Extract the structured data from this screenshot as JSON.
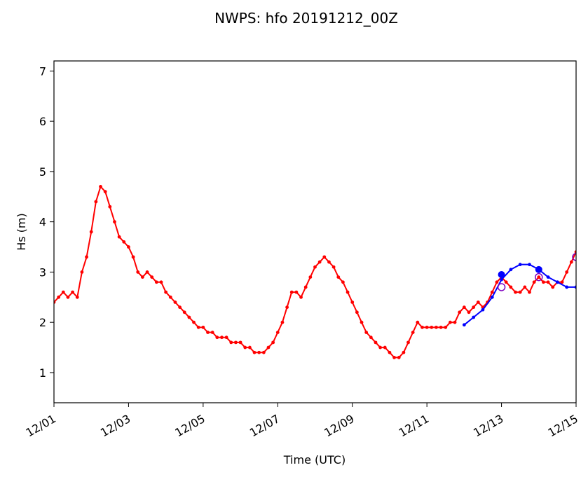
{
  "chart_data": {
    "type": "line",
    "title": "NWPS: hfo 20191212_00Z",
    "xlabel": "Time (UTC)",
    "ylabel": "Hs (m)",
    "xlim": [
      "2019-12-01",
      "2019-12-15"
    ],
    "ylim": [
      0.4,
      7.2
    ],
    "x_ticks": [
      "12/01",
      "12/03",
      "12/05",
      "12/07",
      "12/09",
      "12/11",
      "12/13",
      "12/15"
    ],
    "y_ticks": [
      "1",
      "2",
      "3",
      "4",
      "5",
      "6",
      "7"
    ],
    "grid": false,
    "legend": false,
    "series": [
      {
        "color": "#ff0000",
        "marker": "dot",
        "points": [
          [
            "2019-12-01 00:00",
            2.4
          ],
          [
            "2019-12-01 03:00",
            2.5
          ],
          [
            "2019-12-01 06:00",
            2.6
          ],
          [
            "2019-12-01 09:00",
            2.5
          ],
          [
            "2019-12-01 12:00",
            2.6
          ],
          [
            "2019-12-01 15:00",
            2.5
          ],
          [
            "2019-12-01 18:00",
            3.0
          ],
          [
            "2019-12-01 21:00",
            3.3
          ],
          [
            "2019-12-02 00:00",
            3.8
          ],
          [
            "2019-12-02 03:00",
            4.4
          ],
          [
            "2019-12-02 06:00",
            4.7
          ],
          [
            "2019-12-02 09:00",
            4.6
          ],
          [
            "2019-12-02 12:00",
            4.3
          ],
          [
            "2019-12-02 15:00",
            4.0
          ],
          [
            "2019-12-02 18:00",
            3.7
          ],
          [
            "2019-12-02 21:00",
            3.6
          ],
          [
            "2019-12-03 00:00",
            3.5
          ],
          [
            "2019-12-03 03:00",
            3.3
          ],
          [
            "2019-12-03 06:00",
            3.0
          ],
          [
            "2019-12-03 09:00",
            2.9
          ],
          [
            "2019-12-03 12:00",
            3.0
          ],
          [
            "2019-12-03 15:00",
            2.9
          ],
          [
            "2019-12-03 18:00",
            2.8
          ],
          [
            "2019-12-03 21:00",
            2.8
          ],
          [
            "2019-12-04 00:00",
            2.6
          ],
          [
            "2019-12-04 03:00",
            2.5
          ],
          [
            "2019-12-04 06:00",
            2.4
          ],
          [
            "2019-12-04 09:00",
            2.3
          ],
          [
            "2019-12-04 12:00",
            2.2
          ],
          [
            "2019-12-04 15:00",
            2.1
          ],
          [
            "2019-12-04 18:00",
            2.0
          ],
          [
            "2019-12-04 21:00",
            1.9
          ],
          [
            "2019-12-05 00:00",
            1.9
          ],
          [
            "2019-12-05 03:00",
            1.8
          ],
          [
            "2019-12-05 06:00",
            1.8
          ],
          [
            "2019-12-05 09:00",
            1.7
          ],
          [
            "2019-12-05 12:00",
            1.7
          ],
          [
            "2019-12-05 15:00",
            1.7
          ],
          [
            "2019-12-05 18:00",
            1.6
          ],
          [
            "2019-12-05 21:00",
            1.6
          ],
          [
            "2019-12-06 00:00",
            1.6
          ],
          [
            "2019-12-06 03:00",
            1.5
          ],
          [
            "2019-12-06 06:00",
            1.5
          ],
          [
            "2019-12-06 09:00",
            1.4
          ],
          [
            "2019-12-06 12:00",
            1.4
          ],
          [
            "2019-12-06 15:00",
            1.4
          ],
          [
            "2019-12-06 18:00",
            1.5
          ],
          [
            "2019-12-06 21:00",
            1.6
          ],
          [
            "2019-12-07 00:00",
            1.8
          ],
          [
            "2019-12-07 03:00",
            2.0
          ],
          [
            "2019-12-07 06:00",
            2.3
          ],
          [
            "2019-12-07 09:00",
            2.6
          ],
          [
            "2019-12-07 12:00",
            2.6
          ],
          [
            "2019-12-07 15:00",
            2.5
          ],
          [
            "2019-12-07 18:00",
            2.7
          ],
          [
            "2019-12-07 21:00",
            2.9
          ],
          [
            "2019-12-08 00:00",
            3.1
          ],
          [
            "2019-12-08 03:00",
            3.2
          ],
          [
            "2019-12-08 06:00",
            3.3
          ],
          [
            "2019-12-08 09:00",
            3.2
          ],
          [
            "2019-12-08 12:00",
            3.1
          ],
          [
            "2019-12-08 15:00",
            2.9
          ],
          [
            "2019-12-08 18:00",
            2.8
          ],
          [
            "2019-12-08 21:00",
            2.6
          ],
          [
            "2019-12-09 00:00",
            2.4
          ],
          [
            "2019-12-09 03:00",
            2.2
          ],
          [
            "2019-12-09 06:00",
            2.0
          ],
          [
            "2019-12-09 09:00",
            1.8
          ],
          [
            "2019-12-09 12:00",
            1.7
          ],
          [
            "2019-12-09 15:00",
            1.6
          ],
          [
            "2019-12-09 18:00",
            1.5
          ],
          [
            "2019-12-09 21:00",
            1.5
          ],
          [
            "2019-12-10 00:00",
            1.4
          ],
          [
            "2019-12-10 03:00",
            1.3
          ],
          [
            "2019-12-10 06:00",
            1.3
          ],
          [
            "2019-12-10 09:00",
            1.4
          ],
          [
            "2019-12-10 12:00",
            1.6
          ],
          [
            "2019-12-10 15:00",
            1.8
          ],
          [
            "2019-12-10 18:00",
            2.0
          ],
          [
            "2019-12-10 21:00",
            1.9
          ],
          [
            "2019-12-11 00:00",
            1.9
          ],
          [
            "2019-12-11 03:00",
            1.9
          ],
          [
            "2019-12-11 06:00",
            1.9
          ],
          [
            "2019-12-11 09:00",
            1.9
          ],
          [
            "2019-12-11 12:00",
            1.9
          ],
          [
            "2019-12-11 15:00",
            2.0
          ],
          [
            "2019-12-11 18:00",
            2.0
          ],
          [
            "2019-12-11 21:00",
            2.2
          ],
          [
            "2019-12-12 00:00",
            2.3
          ],
          [
            "2019-12-12 03:00",
            2.2
          ],
          [
            "2019-12-12 06:00",
            2.3
          ],
          [
            "2019-12-12 09:00",
            2.4
          ],
          [
            "2019-12-12 12:00",
            2.3
          ],
          [
            "2019-12-12 15:00",
            2.4
          ],
          [
            "2019-12-12 18:00",
            2.6
          ],
          [
            "2019-12-12 21:00",
            2.8
          ],
          [
            "2019-12-13 00:00",
            2.9
          ],
          [
            "2019-12-13 03:00",
            2.8
          ],
          [
            "2019-12-13 06:00",
            2.7
          ],
          [
            "2019-12-13 09:00",
            2.6
          ],
          [
            "2019-12-13 12:00",
            2.6
          ],
          [
            "2019-12-13 15:00",
            2.7
          ],
          [
            "2019-12-13 18:00",
            2.6
          ],
          [
            "2019-12-13 21:00",
            2.8
          ],
          [
            "2019-12-14 00:00",
            2.9
          ],
          [
            "2019-12-14 03:00",
            2.8
          ],
          [
            "2019-12-14 06:00",
            2.8
          ],
          [
            "2019-12-14 09:00",
            2.7
          ],
          [
            "2019-12-14 12:00",
            2.8
          ],
          [
            "2019-12-14 15:00",
            2.8
          ],
          [
            "2019-12-14 18:00",
            3.0
          ],
          [
            "2019-12-14 21:00",
            3.2
          ],
          [
            "2019-12-15 00:00",
            3.4
          ]
        ]
      },
      {
        "color": "#0000ff",
        "marker": "dot",
        "points": [
          [
            "2019-12-12 00:00",
            1.95
          ],
          [
            "2019-12-12 06:00",
            2.1
          ],
          [
            "2019-12-12 12:00",
            2.25
          ],
          [
            "2019-12-12 18:00",
            2.5
          ],
          [
            "2019-12-13 00:00",
            2.85
          ],
          [
            "2019-12-13 06:00",
            3.05
          ],
          [
            "2019-12-13 12:00",
            3.15
          ],
          [
            "2019-12-13 18:00",
            3.15
          ],
          [
            "2019-12-14 00:00",
            3.05
          ],
          [
            "2019-12-14 06:00",
            2.9
          ],
          [
            "2019-12-14 12:00",
            2.8
          ],
          [
            "2019-12-14 18:00",
            2.7
          ],
          [
            "2019-12-15 00:00",
            2.7
          ]
        ]
      },
      {
        "color": "#0000ff",
        "marker": "filled-circle",
        "points": [
          [
            "2019-12-13 00:00",
            2.95
          ],
          [
            "2019-12-14 00:00",
            3.05
          ]
        ]
      },
      {
        "color": "#8000c0",
        "marker": "open-circle",
        "points": [
          [
            "2019-12-13 00:00",
            2.7
          ],
          [
            "2019-12-14 00:00",
            2.9
          ],
          [
            "2019-12-15 00:00",
            3.3
          ]
        ]
      }
    ]
  }
}
